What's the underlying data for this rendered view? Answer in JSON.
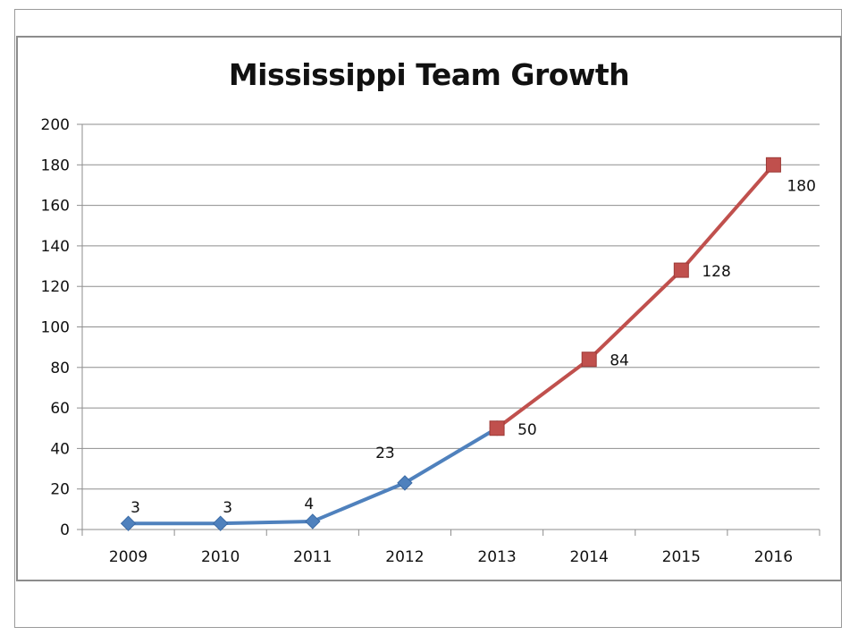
{
  "chart_data": {
    "type": "line",
    "title": "Mississippi Team Growth",
    "categories": [
      "2009",
      "2010",
      "2011",
      "2012",
      "2013",
      "2014",
      "2015",
      "2016"
    ],
    "ylim": [
      0,
      200
    ],
    "yticks": [
      0,
      20,
      40,
      60,
      80,
      100,
      120,
      140,
      160,
      180,
      200
    ],
    "grid": true,
    "legend": "none",
    "series": [
      {
        "color": "#4f81bd",
        "marker": "diamond",
        "x": [
          "2009",
          "2010",
          "2011",
          "2012",
          "2013"
        ],
        "values": [
          3,
          3,
          4,
          23,
          50
        ],
        "labels": [
          "3",
          "3",
          "4",
          "23",
          ""
        ]
      },
      {
        "color": "#c0504d",
        "marker": "square",
        "x": [
          "2013",
          "2014",
          "2015",
          "2016"
        ],
        "values": [
          50,
          84,
          128,
          180
        ],
        "labels": [
          "50",
          "84",
          "128",
          "180"
        ]
      }
    ]
  }
}
